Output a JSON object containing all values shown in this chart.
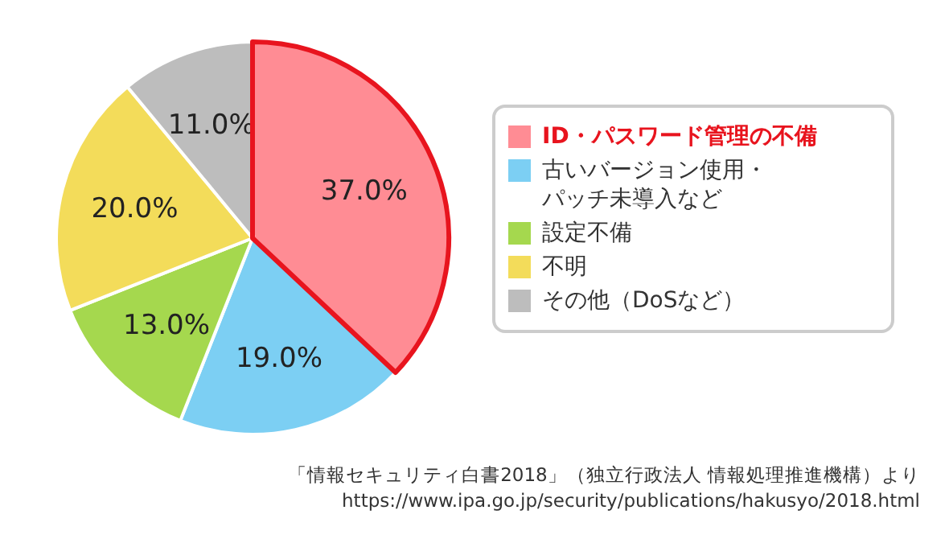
{
  "chart_data": {
    "type": "pie",
    "categories": [
      "ID・パスワード管理の不備",
      "古いバージョン使用・パッチ未導入など",
      "設定不備",
      "不明",
      "その他（DoSなど）"
    ],
    "values": [
      37.0,
      19.0,
      13.0,
      20.0,
      11.0
    ],
    "value_labels": [
      "37.0%",
      "19.0%",
      "13.0%",
      "20.0%",
      "11.0%"
    ],
    "colors": [
      "#ff8c94",
      "#7ccff3",
      "#a5d84e",
      "#f3dc5a",
      "#bdbdbd"
    ],
    "legend": "right",
    "annotations": [
      "「情報セキュリティ白書2018」（独立行政法人 情報処理推進機構）より",
      "https://www.ipa.go.jp/security/publications/hakusyo/2018.html"
    ]
  }
}
